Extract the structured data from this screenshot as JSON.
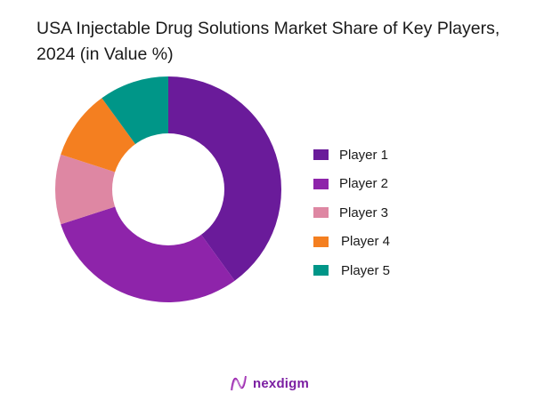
{
  "title": "USA Injectable Drug Solutions Market Share of Key Players, 2024 (in Value %)",
  "chart_data": {
    "type": "pie",
    "subtype": "donut",
    "title": "USA Injectable Drug Solutions Market Share of Key Players, 2024 (in Value %)",
    "categories": [
      "Player 1",
      "Player 2",
      "Player 3",
      "Player 4",
      "Player 5"
    ],
    "values": [
      40,
      30,
      10,
      10,
      10
    ],
    "colors": [
      "#6a1b9a",
      "#8e24aa",
      "#de87a3",
      "#f47f20",
      "#009688"
    ],
    "legend_position": "right",
    "unit": "%"
  },
  "legend": [
    {
      "label": "Player 1",
      "color": "#6a1b9a"
    },
    {
      "label": "Player 2",
      "color": "#8e24aa"
    },
    {
      "label": "Player 3",
      "color": "#de87a3"
    },
    {
      "label": "Player 4",
      "color": "#f47f20"
    },
    {
      "label": "Player 5",
      "color": "#009688"
    }
  ],
  "brand": {
    "name": "nexdigm",
    "color": "#7b1fa2"
  }
}
